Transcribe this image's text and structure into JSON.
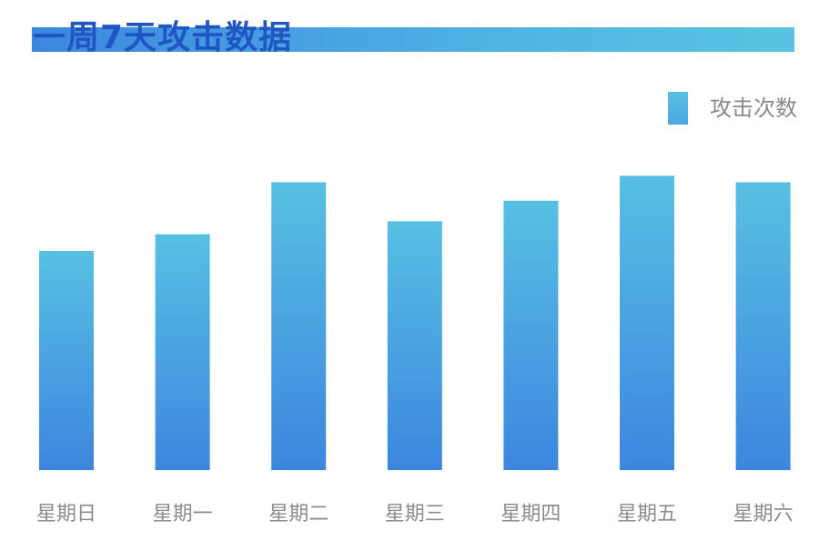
{
  "colors": {
    "title": "#1f56c4",
    "bar_top": "#57c0e2",
    "bar_bottom": "#3d86e0",
    "axis_label": "#8c8c8c"
  },
  "chart_data": {
    "type": "bar",
    "title": "一周7天攻击数据",
    "categories": [
      "星期日",
      "星期一",
      "星期二",
      "星期三",
      "星期四",
      "星期五",
      "星期六"
    ],
    "series": [
      {
        "name": "攻击次数",
        "values": [
          236,
          254,
          310,
          268,
          290,
          317,
          310
        ]
      }
    ],
    "ylim": [
      0,
      330
    ],
    "grid": false,
    "legend_position": "top-right"
  }
}
